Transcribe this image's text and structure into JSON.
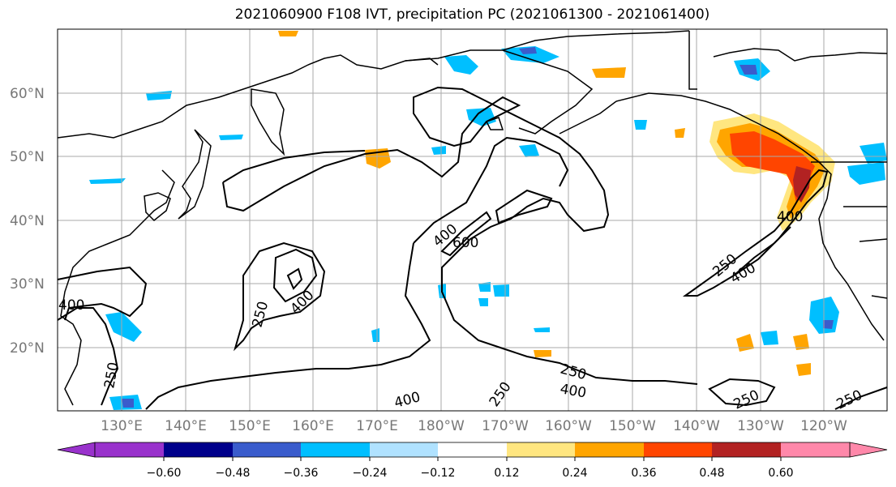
{
  "title": "2021060900 F108 IVT, precipitation PC (2021061300 - 2021061400)",
  "lat_labels": [
    "60°N",
    "50°N",
    "40°N",
    "30°N",
    "20°N"
  ],
  "lon_labels": [
    "130°E",
    "140°E",
    "150°E",
    "160°E",
    "170°E",
    "180°W",
    "170°W",
    "160°W",
    "150°W",
    "140°W",
    "130°W",
    "120°W"
  ],
  "contour_labels": [
    "400",
    "600",
    "250",
    "400",
    "250",
    "250",
    "400",
    "250",
    "250",
    "400",
    "400",
    "250",
    "250",
    "250"
  ],
  "colorbar": {
    "ticks": [
      "−0.60",
      "−0.48",
      "−0.36",
      "−0.24",
      "−0.12",
      "0.12",
      "0.24",
      "0.36",
      "0.48",
      "0.60"
    ],
    "colors": [
      "#9932cc",
      "#00008b",
      "#3a5ccc",
      "#00bfff",
      "#b0e2ff",
      "#ffffff",
      "#ffe680",
      "#ffa500",
      "#ff4500",
      "#b22222",
      "#ff88aa"
    ]
  }
}
